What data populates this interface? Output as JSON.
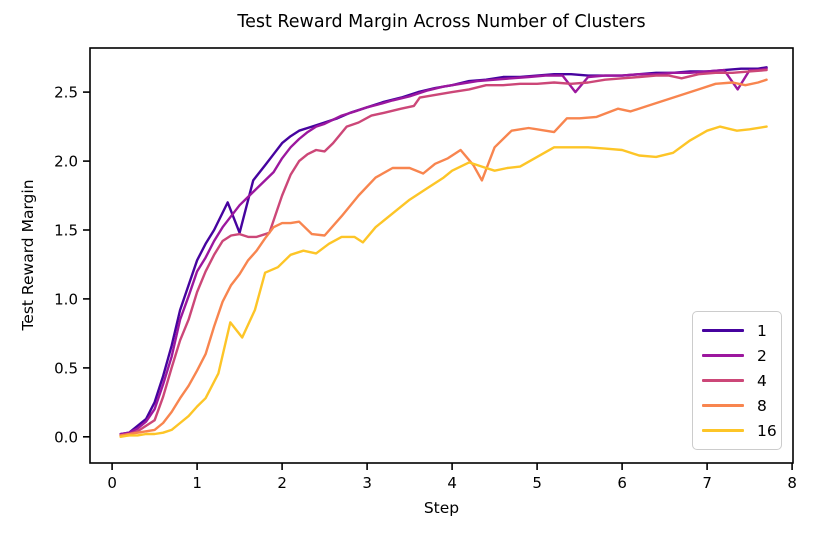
{
  "chart_data": {
    "type": "line",
    "title": "Test Reward Margin Across Number of Clusters",
    "xlabel": "Step",
    "ylabel": "Test Reward Margin",
    "xlim": [
      -0.26,
      8.01
    ],
    "ylim": [
      -0.19,
      2.82
    ],
    "x_ticks": [
      0,
      1,
      2,
      3,
      4,
      5,
      6,
      7,
      8
    ],
    "x_tick_labels": [
      "0",
      "1",
      "2",
      "3",
      "4",
      "5",
      "6",
      "7",
      "8"
    ],
    "y_ticks": [
      0.0,
      0.5,
      1.0,
      1.5,
      2.0,
      2.5
    ],
    "y_tick_labels": [
      "0.0",
      "0.5",
      "1.0",
      "1.5",
      "2.0",
      "2.5"
    ],
    "grid": false,
    "legend_position": "lower right",
    "series": [
      {
        "name": "1",
        "color": "#46039f",
        "points": [
          [
            0.1,
            0.02
          ],
          [
            0.2,
            0.03
          ],
          [
            0.3,
            0.08
          ],
          [
            0.4,
            0.13
          ],
          [
            0.5,
            0.25
          ],
          [
            0.6,
            0.44
          ],
          [
            0.7,
            0.66
          ],
          [
            0.8,
            0.92
          ],
          [
            0.9,
            1.1
          ],
          [
            1.0,
            1.28
          ],
          [
            1.1,
            1.4
          ],
          [
            1.2,
            1.5
          ],
          [
            1.36,
            1.7
          ],
          [
            1.5,
            1.48
          ],
          [
            1.66,
            1.86
          ],
          [
            1.8,
            1.97
          ],
          [
            1.9,
            2.05
          ],
          [
            2.0,
            2.13
          ],
          [
            2.1,
            2.18
          ],
          [
            2.2,
            2.22
          ],
          [
            2.35,
            2.25
          ],
          [
            2.5,
            2.28
          ],
          [
            2.65,
            2.31
          ],
          [
            2.8,
            2.35
          ],
          [
            3.0,
            2.39
          ],
          [
            3.2,
            2.43
          ],
          [
            3.4,
            2.46
          ],
          [
            3.6,
            2.5
          ],
          [
            3.8,
            2.53
          ],
          [
            4.0,
            2.55
          ],
          [
            4.2,
            2.58
          ],
          [
            4.4,
            2.59
          ],
          [
            4.6,
            2.61
          ],
          [
            4.8,
            2.61
          ],
          [
            5.0,
            2.62
          ],
          [
            5.2,
            2.63
          ],
          [
            5.4,
            2.63
          ],
          [
            5.6,
            2.62
          ],
          [
            5.8,
            2.62
          ],
          [
            6.0,
            2.62
          ],
          [
            6.2,
            2.63
          ],
          [
            6.4,
            2.64
          ],
          [
            6.6,
            2.64
          ],
          [
            6.8,
            2.65
          ],
          [
            7.0,
            2.65
          ],
          [
            7.2,
            2.66
          ],
          [
            7.4,
            2.67
          ],
          [
            7.6,
            2.67
          ],
          [
            7.7,
            2.68
          ]
        ]
      },
      {
        "name": "2",
        "color": "#9c179e",
        "points": [
          [
            0.1,
            0.02
          ],
          [
            0.2,
            0.03
          ],
          [
            0.3,
            0.06
          ],
          [
            0.4,
            0.11
          ],
          [
            0.5,
            0.2
          ],
          [
            0.6,
            0.38
          ],
          [
            0.7,
            0.58
          ],
          [
            0.8,
            0.85
          ],
          [
            0.9,
            1.02
          ],
          [
            1.0,
            1.2
          ],
          [
            1.1,
            1.3
          ],
          [
            1.2,
            1.42
          ],
          [
            1.3,
            1.52
          ],
          [
            1.4,
            1.6
          ],
          [
            1.5,
            1.68
          ],
          [
            1.6,
            1.74
          ],
          [
            1.7,
            1.8
          ],
          [
            1.8,
            1.86
          ],
          [
            1.9,
            1.92
          ],
          [
            2.0,
            2.02
          ],
          [
            2.1,
            2.1
          ],
          [
            2.2,
            2.16
          ],
          [
            2.3,
            2.21
          ],
          [
            2.4,
            2.25
          ],
          [
            2.5,
            2.27
          ],
          [
            2.6,
            2.3
          ],
          [
            2.7,
            2.33
          ],
          [
            2.86,
            2.36
          ],
          [
            3.0,
            2.39
          ],
          [
            3.13,
            2.41
          ],
          [
            3.3,
            2.44
          ],
          [
            3.5,
            2.47
          ],
          [
            3.7,
            2.51
          ],
          [
            3.9,
            2.54
          ],
          [
            4.1,
            2.56
          ],
          [
            4.3,
            2.58
          ],
          [
            4.5,
            2.59
          ],
          [
            4.7,
            2.6
          ],
          [
            4.9,
            2.61
          ],
          [
            5.1,
            2.62
          ],
          [
            5.3,
            2.62
          ],
          [
            5.45,
            2.5
          ],
          [
            5.6,
            2.61
          ],
          [
            5.8,
            2.62
          ],
          [
            6.0,
            2.62
          ],
          [
            6.2,
            2.63
          ],
          [
            6.4,
            2.63
          ],
          [
            6.6,
            2.64
          ],
          [
            6.8,
            2.64
          ],
          [
            7.0,
            2.65
          ],
          [
            7.2,
            2.66
          ],
          [
            7.36,
            2.52
          ],
          [
            7.5,
            2.66
          ],
          [
            7.6,
            2.66
          ],
          [
            7.7,
            2.67
          ]
        ]
      },
      {
        "name": "4",
        "color": "#cc4778",
        "points": [
          [
            0.1,
            0.01
          ],
          [
            0.2,
            0.02
          ],
          [
            0.3,
            0.04
          ],
          [
            0.4,
            0.08
          ],
          [
            0.5,
            0.12
          ],
          [
            0.6,
            0.29
          ],
          [
            0.7,
            0.5
          ],
          [
            0.8,
            0.7
          ],
          [
            0.9,
            0.85
          ],
          [
            1.0,
            1.05
          ],
          [
            1.1,
            1.2
          ],
          [
            1.2,
            1.32
          ],
          [
            1.3,
            1.42
          ],
          [
            1.4,
            1.46
          ],
          [
            1.5,
            1.47
          ],
          [
            1.6,
            1.45
          ],
          [
            1.7,
            1.45
          ],
          [
            1.85,
            1.48
          ],
          [
            2.0,
            1.75
          ],
          [
            2.1,
            1.9
          ],
          [
            2.2,
            2.0
          ],
          [
            2.3,
            2.05
          ],
          [
            2.4,
            2.08
          ],
          [
            2.5,
            2.07
          ],
          [
            2.6,
            2.13
          ],
          [
            2.76,
            2.25
          ],
          [
            2.9,
            2.28
          ],
          [
            3.05,
            2.33
          ],
          [
            3.2,
            2.35
          ],
          [
            3.4,
            2.38
          ],
          [
            3.55,
            2.4
          ],
          [
            3.62,
            2.46
          ],
          [
            3.8,
            2.48
          ],
          [
            4.0,
            2.5
          ],
          [
            4.2,
            2.52
          ],
          [
            4.4,
            2.55
          ],
          [
            4.6,
            2.55
          ],
          [
            4.8,
            2.56
          ],
          [
            5.0,
            2.56
          ],
          [
            5.2,
            2.57
          ],
          [
            5.4,
            2.56
          ],
          [
            5.6,
            2.57
          ],
          [
            5.8,
            2.59
          ],
          [
            6.0,
            2.6
          ],
          [
            6.2,
            2.61
          ],
          [
            6.4,
            2.62
          ],
          [
            6.55,
            2.62
          ],
          [
            6.7,
            2.6
          ],
          [
            6.9,
            2.63
          ],
          [
            7.1,
            2.64
          ],
          [
            7.3,
            2.64
          ],
          [
            7.5,
            2.65
          ],
          [
            7.7,
            2.66
          ]
        ]
      },
      {
        "name": "8",
        "color": "#f8854f",
        "points": [
          [
            0.1,
            0.01
          ],
          [
            0.2,
            0.02
          ],
          [
            0.3,
            0.03
          ],
          [
            0.4,
            0.04
          ],
          [
            0.5,
            0.05
          ],
          [
            0.6,
            0.1
          ],
          [
            0.7,
            0.18
          ],
          [
            0.8,
            0.28
          ],
          [
            0.9,
            0.37
          ],
          [
            1.0,
            0.48
          ],
          [
            1.1,
            0.6
          ],
          [
            1.2,
            0.8
          ],
          [
            1.3,
            0.98
          ],
          [
            1.4,
            1.1
          ],
          [
            1.5,
            1.18
          ],
          [
            1.6,
            1.28
          ],
          [
            1.7,
            1.35
          ],
          [
            1.8,
            1.44
          ],
          [
            1.9,
            1.52
          ],
          [
            2.0,
            1.55
          ],
          [
            2.1,
            1.55
          ],
          [
            2.2,
            1.56
          ],
          [
            2.35,
            1.47
          ],
          [
            2.5,
            1.46
          ],
          [
            2.7,
            1.6
          ],
          [
            2.9,
            1.75
          ],
          [
            3.1,
            1.88
          ],
          [
            3.3,
            1.95
          ],
          [
            3.5,
            1.95
          ],
          [
            3.66,
            1.91
          ],
          [
            3.8,
            1.98
          ],
          [
            3.95,
            2.02
          ],
          [
            4.1,
            2.08
          ],
          [
            4.25,
            1.97
          ],
          [
            4.35,
            1.86
          ],
          [
            4.5,
            2.1
          ],
          [
            4.7,
            2.22
          ],
          [
            4.9,
            2.24
          ],
          [
            5.1,
            2.22
          ],
          [
            5.2,
            2.21
          ],
          [
            5.35,
            2.31
          ],
          [
            5.5,
            2.31
          ],
          [
            5.7,
            2.32
          ],
          [
            5.95,
            2.38
          ],
          [
            6.1,
            2.36
          ],
          [
            6.3,
            2.4
          ],
          [
            6.5,
            2.44
          ],
          [
            6.7,
            2.48
          ],
          [
            6.9,
            2.52
          ],
          [
            7.1,
            2.56
          ],
          [
            7.3,
            2.57
          ],
          [
            7.45,
            2.55
          ],
          [
            7.6,
            2.57
          ],
          [
            7.7,
            2.59
          ]
        ]
      },
      {
        "name": "16",
        "color": "#fdc527",
        "points": [
          [
            0.1,
            0.0
          ],
          [
            0.2,
            0.01
          ],
          [
            0.3,
            0.01
          ],
          [
            0.4,
            0.02
          ],
          [
            0.5,
            0.02
          ],
          [
            0.6,
            0.03
          ],
          [
            0.7,
            0.05
          ],
          [
            0.8,
            0.1
          ],
          [
            0.9,
            0.15
          ],
          [
            1.0,
            0.22
          ],
          [
            1.1,
            0.28
          ],
          [
            1.25,
            0.46
          ],
          [
            1.39,
            0.83
          ],
          [
            1.53,
            0.72
          ],
          [
            1.68,
            0.92
          ],
          [
            1.8,
            1.19
          ],
          [
            1.95,
            1.23
          ],
          [
            2.1,
            1.32
          ],
          [
            2.25,
            1.35
          ],
          [
            2.4,
            1.33
          ],
          [
            2.55,
            1.4
          ],
          [
            2.7,
            1.45
          ],
          [
            2.85,
            1.45
          ],
          [
            2.95,
            1.41
          ],
          [
            3.1,
            1.52
          ],
          [
            3.3,
            1.62
          ],
          [
            3.5,
            1.72
          ],
          [
            3.7,
            1.8
          ],
          [
            3.9,
            1.88
          ],
          [
            4.0,
            1.93
          ],
          [
            4.2,
            1.99
          ],
          [
            4.35,
            1.96
          ],
          [
            4.5,
            1.93
          ],
          [
            4.65,
            1.95
          ],
          [
            4.8,
            1.96
          ],
          [
            5.0,
            2.03
          ],
          [
            5.2,
            2.1
          ],
          [
            5.4,
            2.1
          ],
          [
            5.6,
            2.1
          ],
          [
            5.8,
            2.09
          ],
          [
            6.0,
            2.08
          ],
          [
            6.2,
            2.04
          ],
          [
            6.4,
            2.03
          ],
          [
            6.6,
            2.06
          ],
          [
            6.8,
            2.15
          ],
          [
            7.0,
            2.22
          ],
          [
            7.15,
            2.25
          ],
          [
            7.35,
            2.22
          ],
          [
            7.5,
            2.23
          ],
          [
            7.7,
            2.25
          ]
        ]
      }
    ]
  }
}
